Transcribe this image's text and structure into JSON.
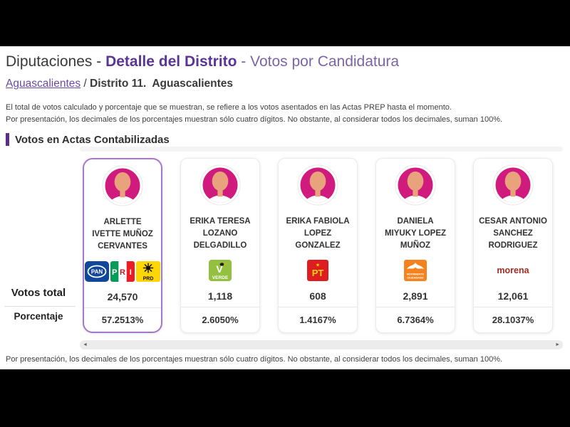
{
  "title": {
    "part1": "Diputaciones - ",
    "part2": "Detalle del Distrito",
    "part3": " - Votos por Candidatura"
  },
  "breadcrumb": {
    "link": "Aguascalientes",
    "separator": " / ",
    "current": "Distrito 11.  Aguascalientes"
  },
  "notes": {
    "line1": "El total de votos calculado y porcentaje que se muestran, se refiere a los votos asentados en las Actas PREP hasta el momento.",
    "line2": "Por presentación, los decimales de los porcentajes muestran sólo cuatro dígitos. No obstante, al considerar todos los decimales, suman 100%."
  },
  "section_title": "Votos en Actas Contabilizadas",
  "row_labels": {
    "votes": "Votos total",
    "percentage": "Porcentaje"
  },
  "scrollbar": {
    "left_arrow": "◄",
    "right_arrow": "►"
  },
  "footer_note": "Por presentación, los decimales de los porcentajes muestran sólo cuatro dígitos. No obstante, al considerar todos los decimales, suman 100%.",
  "candidates": [
    {
      "name": "ARLETTE IVETTE MUÑOZ CERVANTES",
      "name_lines": [
        "ARLETTE",
        "IVETTE MUÑOZ",
        "CERVANTES"
      ],
      "parties": [
        {
          "code": "pan",
          "label": "PAN"
        },
        {
          "code": "pri",
          "label": "PRI"
        },
        {
          "code": "prd",
          "label": "PRD"
        }
      ],
      "votes": "24,570",
      "percentage": "57.2513%",
      "selected": true
    },
    {
      "name": "ERIKA TERESA LOZANO DELGADILLO",
      "name_lines": [
        "ERIKA TERESA",
        "LOZANO",
        "DELGADILLO"
      ],
      "parties": [
        {
          "code": "pvem",
          "label": "VERDE"
        }
      ],
      "votes": "1,118",
      "percentage": "2.6050%",
      "selected": false
    },
    {
      "name": "ERIKA FABIOLA LOPEZ GONZALEZ",
      "name_lines": [
        "ERIKA FABIOLA",
        "LOPEZ",
        "GONZALEZ"
      ],
      "parties": [
        {
          "code": "pt",
          "label": "PT"
        }
      ],
      "votes": "608",
      "percentage": "1.4167%",
      "selected": false
    },
    {
      "name": "DANIELA MIYUKY LOPEZ MUÑOZ",
      "name_lines": [
        "DANIELA",
        "MIYUKY LOPEZ",
        "MUÑOZ"
      ],
      "parties": [
        {
          "code": "mc",
          "label": "MOVIMIENTO CIUDADANO"
        }
      ],
      "votes": "2,891",
      "percentage": "6.7364%",
      "selected": false
    },
    {
      "name": "CESAR ANTONIO SANCHEZ RODRIGUEZ",
      "name_lines": [
        "CESAR ANTONIO",
        "SANCHEZ",
        "RODRIGUEZ"
      ],
      "parties": [
        {
          "code": "morena",
          "label": "morena"
        }
      ],
      "votes": "12,061",
      "percentage": "28.1037%",
      "selected": false
    }
  ],
  "colors": {
    "accent_purple": "#5b2d91",
    "title_purple_bold": "#5b3596",
    "title_purple_light": "#7d64a8",
    "link_purple": "#6a4ba1",
    "selected_card_border": "#a678c8",
    "avatar_pink": "#d11a7e",
    "avatar_skin": "#e8a37c",
    "pan_blue": "#10479b",
    "pri_green": "#069b5a",
    "pri_red": "#ec1c24",
    "prd_yellow": "#ffd700",
    "pvem_green": "#93c03e",
    "pt_red": "#dd1d21",
    "pt_yellow": "#ffd900",
    "mc_orange": "#f5821f",
    "morena_red": "#aa2b23"
  }
}
